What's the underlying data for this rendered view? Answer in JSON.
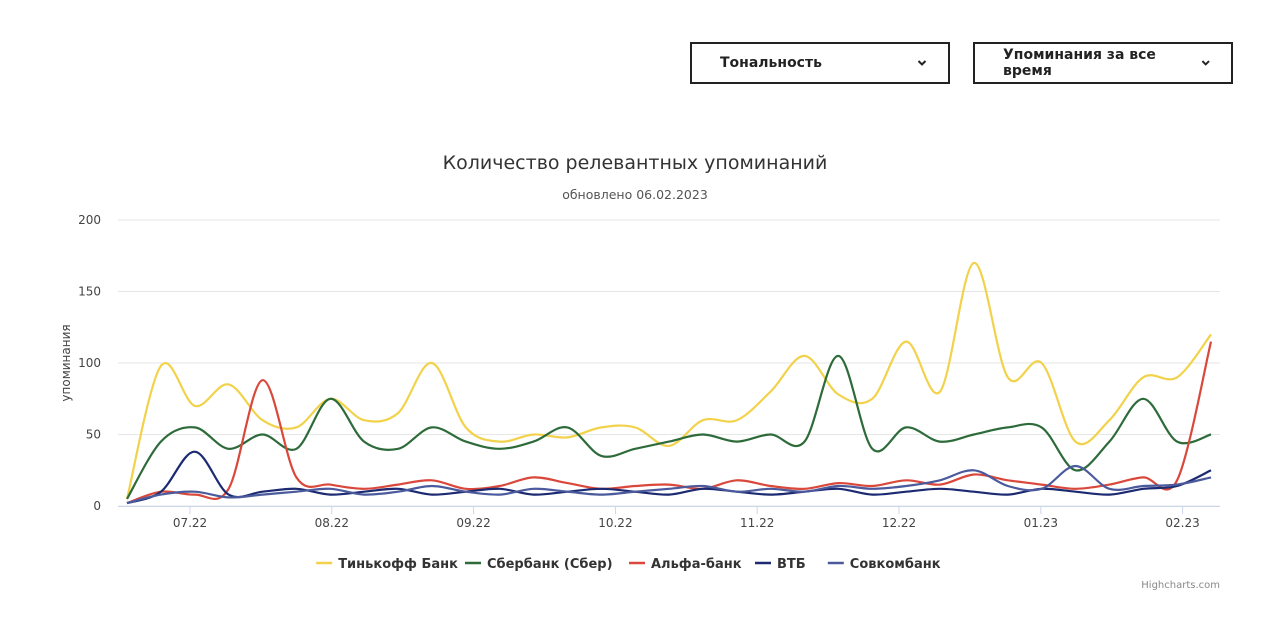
{
  "controls": {
    "tone_label": "Тональность",
    "period_label": "Упоминания за все время"
  },
  "credits": "Highcharts.com",
  "chart_data": {
    "type": "line",
    "title": "Количество релевантных упоминаний",
    "subtitle": "обновлено 06.02.2023",
    "ylabel": "упоминания",
    "xlabel": "",
    "ylim": [
      0,
      200
    ],
    "yticks": [
      0,
      50,
      100,
      150,
      200
    ],
    "xticks": [
      "07.22",
      "08.22",
      "09.22",
      "10.22",
      "11.22",
      "12.22",
      "01.23",
      "02.23"
    ],
    "grid": true,
    "legend": "bottom-center",
    "x_unit": "week",
    "x": [
      "06-22 w3",
      "06-22 w4",
      "07-22 w1",
      "07-22 w2",
      "07-22 w3",
      "07-22 w4",
      "07-22 w5",
      "08-22 w1",
      "08-22 w2",
      "08-22 w3",
      "08-22 w4",
      "09-22 w1",
      "09-22 w2",
      "09-22 w3",
      "09-22 w4",
      "10-22 w1",
      "10-22 w2",
      "10-22 w3",
      "10-22 w4",
      "11-22 w1",
      "11-22 w2",
      "11-22 w3",
      "11-22 w4",
      "12-22 w1",
      "12-22 w2",
      "12-22 w3",
      "12-22 w4",
      "01-23 w1",
      "01-23 w2",
      "01-23 w3",
      "01-23 w4",
      "02-23 w1",
      "02-23 w2"
    ],
    "series": [
      {
        "name": "Тинькофф Банк",
        "color": "#f2d24b",
        "values": [
          5,
          98,
          70,
          85,
          60,
          55,
          75,
          60,
          65,
          100,
          55,
          45,
          50,
          48,
          55,
          55,
          42,
          60,
          60,
          80,
          105,
          78,
          75,
          115,
          80,
          170,
          90,
          100,
          45,
          60,
          90,
          90,
          120
        ]
      },
      {
        "name": "Сбербанк (Сбер)",
        "color": "#2e6b3a",
        "values": [
          5,
          45,
          55,
          40,
          50,
          40,
          75,
          45,
          40,
          55,
          45,
          40,
          45,
          55,
          35,
          40,
          45,
          50,
          45,
          50,
          45,
          105,
          40,
          55,
          45,
          50,
          55,
          55,
          25,
          45,
          75,
          45,
          50
        ]
      },
      {
        "name": "Альфа-банк",
        "color": "#d9483b",
        "values": [
          2,
          10,
          8,
          12,
          88,
          20,
          15,
          12,
          15,
          18,
          12,
          14,
          20,
          16,
          12,
          14,
          15,
          12,
          18,
          14,
          12,
          16,
          14,
          18,
          15,
          22,
          18,
          15,
          12,
          15,
          20,
          18,
          115
        ]
      },
      {
        "name": "ВТБ",
        "color": "#1c2a72",
        "values": [
          2,
          10,
          38,
          8,
          10,
          12,
          8,
          10,
          12,
          8,
          10,
          12,
          8,
          10,
          12,
          10,
          8,
          12,
          10,
          8,
          10,
          12,
          8,
          10,
          12,
          10,
          8,
          12,
          10,
          8,
          12,
          14,
          25
        ]
      },
      {
        "name": "Совкомбанк",
        "color": "#4a5a9c",
        "values": [
          2,
          8,
          10,
          6,
          8,
          10,
          12,
          8,
          10,
          14,
          10,
          8,
          12,
          10,
          8,
          10,
          12,
          14,
          10,
          12,
          10,
          14,
          12,
          14,
          18,
          25,
          14,
          12,
          28,
          12,
          14,
          15,
          20
        ]
      }
    ]
  }
}
